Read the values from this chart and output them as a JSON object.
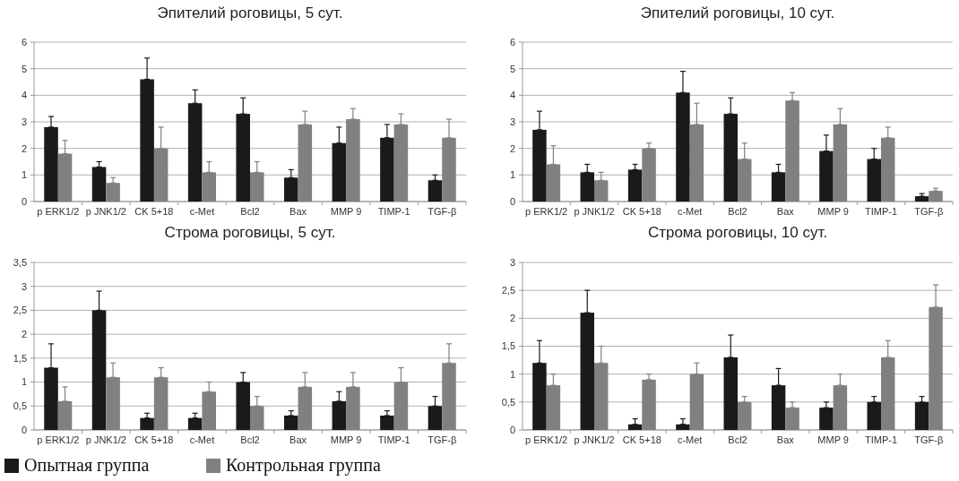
{
  "chart_data": [
    {
      "type": "bar",
      "title": "Эпителий роговицы, 5 сут.",
      "categories": [
        "p ERK1/2",
        "p JNK1/2",
        "CK 5+18",
        "c-Met",
        "Bcl2",
        "Bax",
        "MMP 9",
        "TIMP-1",
        "TGF-β"
      ],
      "ylim": [
        0,
        6
      ],
      "yticks": [
        0,
        1,
        2,
        3,
        4,
        5,
        6
      ],
      "grid": "y",
      "legend": false,
      "series": [
        {
          "color": "#1a1a1a",
          "values": [
            2.8,
            1.3,
            4.6,
            3.7,
            3.3,
            0.9,
            2.2,
            2.4,
            0.8
          ],
          "errors": [
            [
              2.8,
              3.2
            ],
            [
              1.3,
              1.5
            ],
            [
              4.6,
              5.4
            ],
            [
              3.7,
              4.2
            ],
            [
              3.3,
              3.9
            ],
            [
              0.9,
              1.2
            ],
            [
              2.2,
              2.8
            ],
            [
              2.4,
              2.9
            ],
            [
              0.8,
              1.0
            ]
          ]
        },
        {
          "color": "#808080",
          "values": [
            1.8,
            0.7,
            2.0,
            1.1,
            1.1,
            2.9,
            3.1,
            2.9,
            2.4
          ],
          "errors": [
            [
              1.8,
              2.3
            ],
            [
              0.7,
              0.9
            ],
            [
              2.0,
              2.8
            ],
            [
              1.1,
              1.5
            ],
            [
              1.1,
              1.5
            ],
            [
              2.9,
              3.4
            ],
            [
              3.1,
              3.5
            ],
            [
              2.9,
              3.3
            ],
            [
              2.4,
              3.1
            ]
          ]
        }
      ]
    },
    {
      "type": "bar",
      "title": "Эпителий роговицы, 10 сут.",
      "categories": [
        "p ERK1/2",
        "p JNK1/2",
        "CK 5+18",
        "c-Met",
        "Bcl2",
        "Bax",
        "MMP 9",
        "TIMP-1",
        "TGF-β"
      ],
      "ylim": [
        0,
        6
      ],
      "yticks": [
        0,
        1,
        2,
        3,
        4,
        5,
        6
      ],
      "grid": "y",
      "legend": false,
      "series": [
        {
          "color": "#1a1a1a",
          "values": [
            2.7,
            1.1,
            1.2,
            4.1,
            3.3,
            1.1,
            1.9,
            1.6,
            0.2
          ],
          "errors": [
            [
              2.7,
              3.4
            ],
            [
              1.1,
              1.4
            ],
            [
              1.2,
              1.4
            ],
            [
              4.1,
              4.9
            ],
            [
              3.3,
              3.9
            ],
            [
              1.1,
              1.4
            ],
            [
              1.9,
              2.5
            ],
            [
              1.6,
              2.0
            ],
            [
              0.2,
              0.3
            ]
          ]
        },
        {
          "color": "#808080",
          "values": [
            1.4,
            0.8,
            2.0,
            2.9,
            1.6,
            3.8,
            2.9,
            2.4,
            0.4
          ],
          "errors": [
            [
              1.4,
              2.1
            ],
            [
              0.8,
              1.1
            ],
            [
              2.0,
              2.2
            ],
            [
              2.9,
              3.7
            ],
            [
              1.6,
              2.2
            ],
            [
              3.8,
              4.1
            ],
            [
              2.9,
              3.5
            ],
            [
              2.4,
              2.8
            ],
            [
              0.4,
              0.5
            ]
          ]
        }
      ]
    },
    {
      "type": "bar",
      "title": "Строма роговицы, 5 сут.",
      "categories": [
        "p ERK1/2",
        "p JNK1/2",
        "CK 5+18",
        "c-Met",
        "Bcl2",
        "Bax",
        "MMP 9",
        "TIMP-1",
        "TGF-β"
      ],
      "ylim": [
        0,
        3.5
      ],
      "yticks": [
        0,
        {
          "value": 0.5,
          "label": "0,5"
        },
        1,
        {
          "value": 1.5,
          "label": "1,5"
        },
        2,
        {
          "value": 2.5,
          "label": "2,5"
        },
        3,
        {
          "value": 3.5,
          "label": "3,5"
        }
      ],
      "grid": "y",
      "legend": "bottom",
      "series": [
        {
          "name": "Опытная группа",
          "color": "#1a1a1a",
          "values": [
            1.3,
            2.5,
            0.25,
            0.25,
            1.0,
            0.3,
            0.6,
            0.3,
            0.5
          ],
          "errors": [
            [
              1.3,
              1.8
            ],
            [
              2.5,
              2.9
            ],
            [
              0.25,
              0.35
            ],
            [
              0.25,
              0.35
            ],
            [
              1.0,
              1.2
            ],
            [
              0.3,
              0.4
            ],
            [
              0.6,
              0.8
            ],
            [
              0.3,
              0.4
            ],
            [
              0.5,
              0.7
            ]
          ]
        },
        {
          "name": "Контрольная группа",
          "color": "#808080",
          "values": [
            0.6,
            1.1,
            1.1,
            0.8,
            0.5,
            0.9,
            0.9,
            1.0,
            1.4
          ],
          "errors": [
            [
              0.6,
              0.9
            ],
            [
              1.1,
              1.4
            ],
            [
              1.1,
              1.3
            ],
            [
              0.8,
              1.0
            ],
            [
              0.5,
              0.7
            ],
            [
              0.9,
              1.2
            ],
            [
              0.9,
              1.2
            ],
            [
              1.0,
              1.3
            ],
            [
              1.4,
              1.8
            ]
          ]
        }
      ]
    },
    {
      "type": "bar",
      "title": "Строма роговицы, 10 сут.",
      "categories": [
        "p ERK1/2",
        "p JNK1/2",
        "CK 5+18",
        "c-Met",
        "Bcl2",
        "Bax",
        "MMP 9",
        "TIMP-1",
        "TGF-β"
      ],
      "ylim": [
        0,
        3
      ],
      "yticks": [
        0,
        {
          "value": 0.5,
          "label": "0,5"
        },
        1,
        {
          "value": 1.5,
          "label": "1,5"
        },
        2,
        {
          "value": 2.5,
          "label": "2,5"
        },
        3
      ],
      "grid": "y",
      "legend": false,
      "series": [
        {
          "color": "#1a1a1a",
          "values": [
            1.2,
            2.1,
            0.1,
            0.1,
            1.3,
            0.8,
            0.4,
            0.5,
            0.5
          ],
          "errors": [
            [
              1.2,
              1.6
            ],
            [
              2.1,
              2.5
            ],
            [
              0.1,
              0.2
            ],
            [
              0.1,
              0.2
            ],
            [
              1.3,
              1.7
            ],
            [
              0.8,
              1.1
            ],
            [
              0.4,
              0.5
            ],
            [
              0.5,
              0.6
            ],
            [
              0.5,
              0.6
            ]
          ]
        },
        {
          "color": "#808080",
          "values": [
            0.8,
            1.2,
            0.9,
            1.0,
            0.5,
            0.4,
            0.8,
            1.3,
            2.2
          ],
          "errors": [
            [
              0.8,
              1.0
            ],
            [
              1.2,
              1.5
            ],
            [
              0.9,
              1.0
            ],
            [
              1.0,
              1.2
            ],
            [
              0.5,
              0.6
            ],
            [
              0.4,
              0.5
            ],
            [
              0.8,
              1.0
            ],
            [
              1.3,
              1.6
            ],
            [
              2.2,
              2.6
            ]
          ]
        }
      ]
    }
  ]
}
